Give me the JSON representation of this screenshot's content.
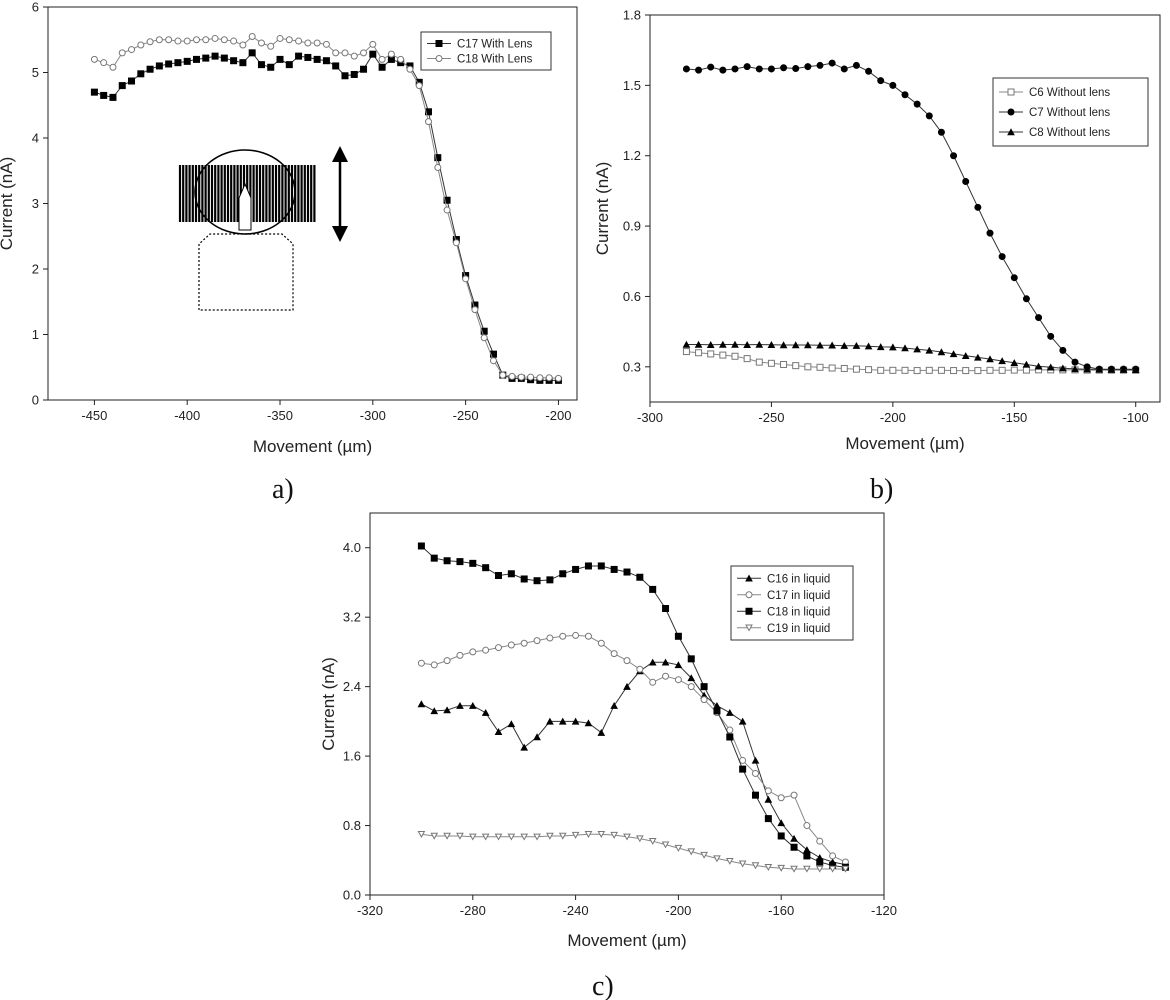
{
  "chart_data": [
    {
      "panel": "a",
      "type": "line",
      "caption": "a)",
      "xlabel": "Movement (µm)",
      "ylabel": "Current (nA)",
      "xlim": [
        -475,
        -190
      ],
      "ylim": [
        0,
        6
      ],
      "xticks": [
        -450,
        -400,
        -350,
        -300,
        -250,
        -200
      ],
      "yticks": [
        0,
        1,
        2,
        3,
        4,
        5,
        6
      ],
      "legend_position": "top-right",
      "grid": false,
      "series": [
        {
          "name": "C17 With Lens",
          "marker": "square-filled",
          "x": [
            -450,
            -445,
            -440,
            -435,
            -430,
            -425,
            -420,
            -415,
            -410,
            -405,
            -400,
            -395,
            -390,
            -385,
            -380,
            -375,
            -370,
            -365,
            -360,
            -355,
            -350,
            -345,
            -340,
            -335,
            -330,
            -325,
            -320,
            -315,
            -310,
            -305,
            -300,
            -295,
            -290,
            -285,
            -280,
            -275,
            -270,
            -265,
            -260,
            -255,
            -250,
            -245,
            -240,
            -235,
            -230,
            -225,
            -220,
            -215,
            -210,
            -205,
            -200
          ],
          "y": [
            4.7,
            4.65,
            4.62,
            4.8,
            4.87,
            4.98,
            5.05,
            5.1,
            5.13,
            5.15,
            5.17,
            5.2,
            5.22,
            5.25,
            5.22,
            5.18,
            5.15,
            5.3,
            5.12,
            5.08,
            5.2,
            5.12,
            5.25,
            5.23,
            5.2,
            5.18,
            5.1,
            4.95,
            4.97,
            5.05,
            5.28,
            5.08,
            5.2,
            5.15,
            5.1,
            4.85,
            4.4,
            3.7,
            3.05,
            2.45,
            1.9,
            1.45,
            1.05,
            0.7,
            0.38,
            0.33,
            0.33,
            0.31,
            0.3,
            0.3,
            0.3
          ]
        },
        {
          "name": "C18 With Lens",
          "marker": "circle-open",
          "x": [
            -450,
            -445,
            -440,
            -435,
            -430,
            -425,
            -420,
            -415,
            -410,
            -405,
            -400,
            -395,
            -390,
            -385,
            -380,
            -375,
            -370,
            -365,
            -360,
            -355,
            -350,
            -345,
            -340,
            -335,
            -330,
            -325,
            -320,
            -315,
            -310,
            -305,
            -300,
            -295,
            -290,
            -285,
            -280,
            -275,
            -270,
            -265,
            -260,
            -255,
            -250,
            -245,
            -240,
            -235,
            -230,
            -225,
            -220,
            -215,
            -210,
            -205,
            -200
          ],
          "y": [
            5.2,
            5.15,
            5.08,
            5.3,
            5.35,
            5.42,
            5.47,
            5.5,
            5.5,
            5.48,
            5.48,
            5.5,
            5.5,
            5.52,
            5.5,
            5.48,
            5.42,
            5.55,
            5.45,
            5.4,
            5.52,
            5.5,
            5.48,
            5.45,
            5.45,
            5.43,
            5.3,
            5.3,
            5.25,
            5.3,
            5.43,
            5.2,
            5.28,
            5.2,
            5.05,
            4.8,
            4.25,
            3.55,
            2.9,
            2.4,
            1.85,
            1.38,
            0.95,
            0.6,
            0.38,
            0.36,
            0.35,
            0.35,
            0.34,
            0.34,
            0.33
          ]
        }
      ]
    },
    {
      "panel": "b",
      "type": "line",
      "caption": "b)",
      "xlabel": "Movement (µm)",
      "ylabel": "Current (nA)",
      "xlim": [
        -300,
        -90
      ],
      "ylim": [
        0.15,
        1.8
      ],
      "xticks": [
        -300,
        -250,
        -200,
        -150,
        -100
      ],
      "yticks": [
        0.3,
        0.6,
        0.9,
        1.2,
        1.5,
        1.8
      ],
      "legend_position": "top-right",
      "grid": false,
      "series": [
        {
          "name": "C6 Without lens",
          "marker": "square-open",
          "x": [
            -285,
            -280,
            -275,
            -270,
            -265,
            -260,
            -255,
            -250,
            -245,
            -240,
            -235,
            -230,
            -225,
            -220,
            -215,
            -210,
            -205,
            -200,
            -195,
            -190,
            -185,
            -180,
            -175,
            -170,
            -165,
            -160,
            -155,
            -150,
            -145,
            -140,
            -135,
            -130,
            -125,
            -120,
            -115,
            -110,
            -105,
            -100
          ],
          "y": [
            0.365,
            0.36,
            0.355,
            0.35,
            0.345,
            0.335,
            0.32,
            0.315,
            0.31,
            0.305,
            0.3,
            0.298,
            0.295,
            0.293,
            0.29,
            0.288,
            0.285,
            0.285,
            0.285,
            0.284,
            0.285,
            0.285,
            0.284,
            0.284,
            0.284,
            0.285,
            0.285,
            0.286,
            0.286,
            0.287,
            0.287,
            0.287,
            0.287,
            0.286,
            0.286,
            0.286,
            0.286,
            0.286
          ]
        },
        {
          "name": "C7 Without lens",
          "marker": "circle-filled",
          "x": [
            -285,
            -280,
            -275,
            -270,
            -265,
            -260,
            -255,
            -250,
            -245,
            -240,
            -235,
            -230,
            -225,
            -220,
            -215,
            -210,
            -205,
            -200,
            -195,
            -190,
            -185,
            -180,
            -175,
            -170,
            -165,
            -160,
            -155,
            -150,
            -145,
            -140,
            -135,
            -130,
            -125,
            -120,
            -115,
            -110,
            -105,
            -100
          ],
          "y": [
            1.57,
            1.565,
            1.578,
            1.565,
            1.57,
            1.58,
            1.57,
            1.57,
            1.575,
            1.572,
            1.58,
            1.585,
            1.595,
            1.57,
            1.585,
            1.56,
            1.52,
            1.5,
            1.46,
            1.42,
            1.37,
            1.3,
            1.2,
            1.09,
            0.98,
            0.87,
            0.77,
            0.68,
            0.59,
            0.51,
            0.43,
            0.37,
            0.32,
            0.3,
            0.29,
            0.29,
            0.29,
            0.29
          ]
        },
        {
          "name": "C8 Without lens",
          "marker": "triangle-filled",
          "x": [
            -285,
            -280,
            -275,
            -270,
            -265,
            -260,
            -255,
            -250,
            -245,
            -240,
            -235,
            -230,
            -225,
            -220,
            -215,
            -210,
            -205,
            -200,
            -195,
            -190,
            -185,
            -180,
            -175,
            -170,
            -165,
            -160,
            -155,
            -150,
            -145,
            -140,
            -135,
            -130,
            -125,
            -120,
            -115,
            -110,
            -105,
            -100
          ],
          "y": [
            0.395,
            0.395,
            0.394,
            0.395,
            0.395,
            0.394,
            0.395,
            0.394,
            0.393,
            0.393,
            0.393,
            0.392,
            0.392,
            0.39,
            0.39,
            0.388,
            0.385,
            0.384,
            0.38,
            0.375,
            0.37,
            0.363,
            0.355,
            0.347,
            0.34,
            0.333,
            0.325,
            0.317,
            0.31,
            0.302,
            0.298,
            0.294,
            0.291,
            0.29,
            0.289,
            0.288,
            0.288,
            0.287
          ]
        }
      ]
    },
    {
      "panel": "c",
      "type": "line",
      "caption": "c)",
      "xlabel": "Movement (µm)",
      "ylabel": "Current (nA)",
      "xlim": [
        -320,
        -120
      ],
      "ylim": [
        0,
        4.4
      ],
      "xticks": [
        -320,
        -280,
        -240,
        -200,
        -160,
        -120
      ],
      "yticks": [
        0.0,
        0.8,
        1.6,
        2.4,
        3.2,
        4.0
      ],
      "ytick_labels": [
        "0.0",
        "0.8",
        "1.6",
        "2.4",
        "3.2",
        "4.0"
      ],
      "legend_position": "top-right",
      "grid": false,
      "series": [
        {
          "name": "C16 in liquid",
          "marker": "triangle-filled",
          "x": [
            -300,
            -295,
            -290,
            -285,
            -280,
            -275,
            -270,
            -265,
            -260,
            -255,
            -250,
            -245,
            -240,
            -235,
            -230,
            -225,
            -220,
            -215,
            -210,
            -205,
            -200,
            -195,
            -190,
            -185,
            -180,
            -175,
            -170,
            -165,
            -160,
            -155,
            -150,
            -145,
            -140,
            -135
          ],
          "y": [
            2.2,
            2.12,
            2.13,
            2.18,
            2.18,
            2.1,
            1.88,
            1.97,
            1.7,
            1.82,
            2.0,
            2.0,
            2.0,
            1.98,
            1.87,
            2.18,
            2.4,
            2.58,
            2.68,
            2.68,
            2.65,
            2.5,
            2.3,
            2.18,
            2.1,
            2.0,
            1.55,
            1.1,
            0.83,
            0.65,
            0.52,
            0.43,
            0.38,
            0.35
          ]
        },
        {
          "name": "C17 in liquid",
          "marker": "circle-open",
          "x": [
            -300,
            -295,
            -290,
            -285,
            -280,
            -275,
            -270,
            -265,
            -260,
            -255,
            -250,
            -245,
            -240,
            -235,
            -230,
            -225,
            -220,
            -215,
            -210,
            -205,
            -200,
            -195,
            -190,
            -185,
            -180,
            -175,
            -170,
            -165,
            -160,
            -155,
            -150,
            -145,
            -140,
            -135
          ],
          "y": [
            2.67,
            2.65,
            2.7,
            2.76,
            2.8,
            2.82,
            2.85,
            2.88,
            2.9,
            2.93,
            2.96,
            2.98,
            2.99,
            2.98,
            2.9,
            2.78,
            2.7,
            2.6,
            2.45,
            2.52,
            2.48,
            2.4,
            2.25,
            2.1,
            1.9,
            1.55,
            1.4,
            1.2,
            1.12,
            1.15,
            0.8,
            0.62,
            0.45,
            0.38
          ]
        },
        {
          "name": "C18 in liquid",
          "marker": "square-filled",
          "x": [
            -300,
            -295,
            -290,
            -285,
            -280,
            -275,
            -270,
            -265,
            -260,
            -255,
            -250,
            -245,
            -240,
            -235,
            -230,
            -225,
            -220,
            -215,
            -210,
            -205,
            -200,
            -195,
            -190,
            -185,
            -180,
            -175,
            -170,
            -165,
            -160,
            -155,
            -150,
            -145,
            -140,
            -135
          ],
          "y": [
            4.02,
            3.88,
            3.85,
            3.84,
            3.82,
            3.77,
            3.68,
            3.7,
            3.64,
            3.62,
            3.63,
            3.7,
            3.75,
            3.79,
            3.79,
            3.75,
            3.72,
            3.66,
            3.52,
            3.3,
            2.98,
            2.72,
            2.4,
            2.12,
            1.82,
            1.45,
            1.15,
            0.88,
            0.68,
            0.55,
            0.45,
            0.38,
            0.34,
            0.32
          ]
        },
        {
          "name": "C19 in liquid",
          "marker": "triangle-down-open",
          "x": [
            -300,
            -295,
            -290,
            -285,
            -280,
            -275,
            -270,
            -265,
            -260,
            -255,
            -250,
            -245,
            -240,
            -235,
            -230,
            -225,
            -220,
            -215,
            -210,
            -205,
            -200,
            -195,
            -190,
            -185,
            -180,
            -175,
            -170,
            -165,
            -160,
            -155,
            -150,
            -145,
            -140,
            -135
          ],
          "y": [
            0.7,
            0.68,
            0.68,
            0.68,
            0.67,
            0.67,
            0.67,
            0.67,
            0.67,
            0.67,
            0.68,
            0.68,
            0.69,
            0.7,
            0.7,
            0.69,
            0.67,
            0.65,
            0.62,
            0.58,
            0.54,
            0.5,
            0.46,
            0.42,
            0.39,
            0.36,
            0.34,
            0.32,
            0.31,
            0.3,
            0.3,
            0.3,
            0.3,
            0.3
          ]
        }
      ]
    }
  ],
  "inset": {
    "description_icon": "probe-in-lens-schematic",
    "arrow_icon": "double-headed-arrow-icon"
  }
}
